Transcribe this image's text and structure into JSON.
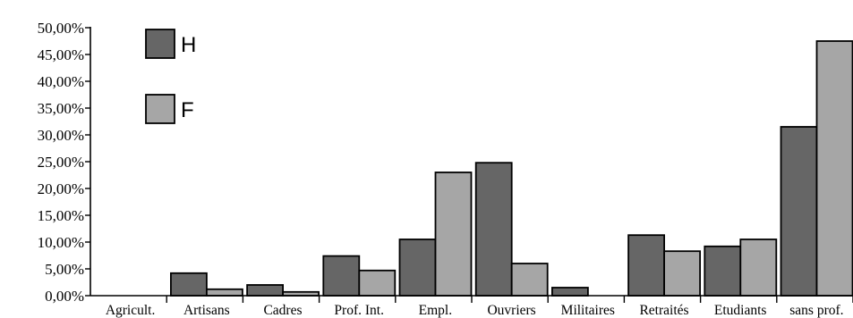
{
  "chart_data": {
    "type": "bar",
    "categories": [
      "Agricult.",
      "Artisans",
      "Cadres",
      "Prof. Int.",
      "Empl.",
      "Ouvriers",
      "Militaires",
      "Retraités",
      "Etudiants",
      "sans prof."
    ],
    "series": [
      {
        "name": "H",
        "color": "#666666",
        "values": [
          0.0,
          4.2,
          2.0,
          7.4,
          10.5,
          24.8,
          1.5,
          11.3,
          9.2,
          31.5
        ]
      },
      {
        "name": "F",
        "color": "#a6a6a6",
        "values": [
          0.0,
          1.2,
          0.7,
          4.7,
          23.0,
          6.0,
          0.0,
          8.3,
          10.5,
          47.5
        ]
      }
    ],
    "ylim": [
      0,
      50
    ],
    "yticks": [
      "0,00%",
      "5,00%",
      "10,00%",
      "15,00%",
      "20,00%",
      "25,00%",
      "30,00%",
      "35,00%",
      "40,00%",
      "45,00%",
      "50,00%"
    ],
    "title": "",
    "xlabel": "",
    "ylabel": "",
    "grid": false,
    "legend_position": "top-left"
  }
}
